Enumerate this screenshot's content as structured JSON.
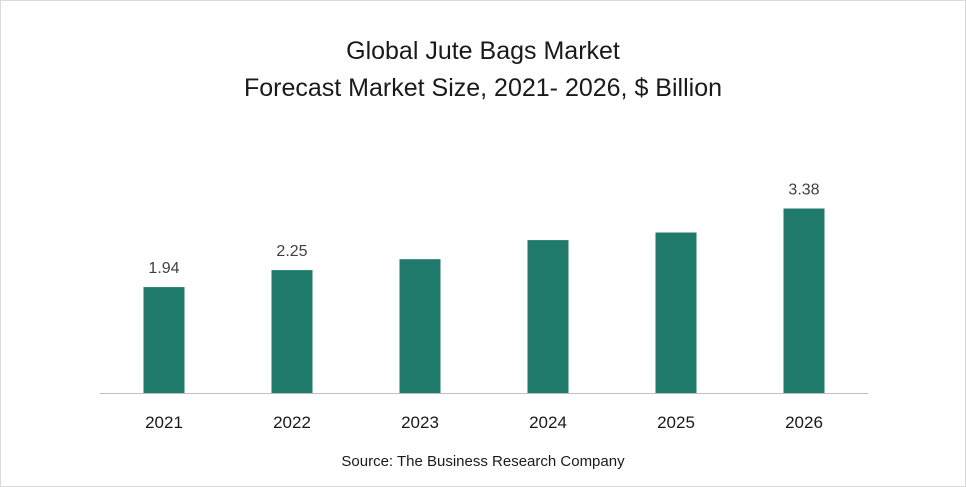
{
  "chart_data": {
    "type": "bar",
    "title": "Global Jute Bags Market",
    "subtitle": "Forecast Market Size, 2021- 2026, $ Billion",
    "categories": [
      "2021",
      "2022",
      "2023",
      "2024",
      "2025",
      "2026"
    ],
    "values": [
      1.94,
      2.25,
      2.45,
      2.8,
      2.94,
      3.38
    ],
    "data_labels": [
      "1.94",
      "2.25",
      "",
      "",
      "",
      "3.38"
    ],
    "ylim": [
      0,
      3.9
    ],
    "grid": false,
    "legend": "none",
    "bar_color": "#207a6b",
    "axis_color": "#bfbfbf"
  },
  "source": "Source: The Business Research Company"
}
